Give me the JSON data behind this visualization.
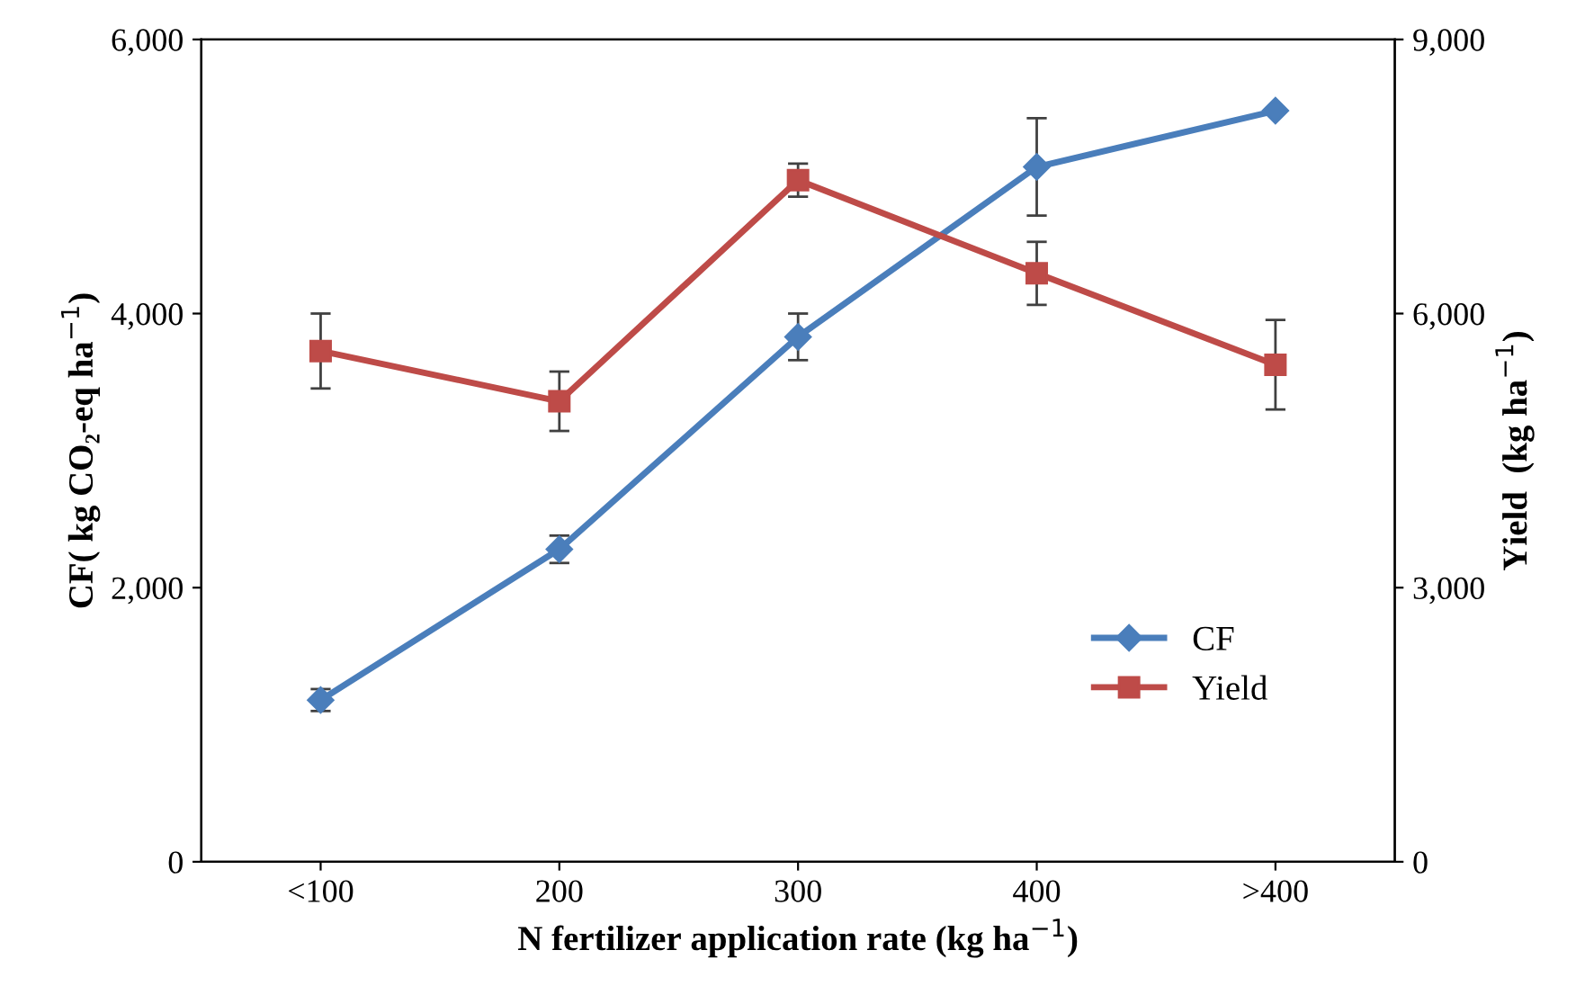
{
  "chart_data": {
    "type": "line",
    "xlabel": "N fertilizer application rate (kg ha$^{−1}$)",
    "ylabel": "CF( kg CO₂-eq ha$^{−1}$)",
    "y2label": "Yield  (kg ha$^{−1}$)",
    "categories": [
      "<100",
      "200",
      "300",
      "400",
      ">400"
    ],
    "series": [
      {
        "name": "CF",
        "color": "#4a7ebb",
        "values": [
          1180,
          2280,
          3830,
          5070,
          5480
        ],
        "errors": [
          80,
          100,
          170,
          355,
          null
        ],
        "marker": "diamond"
      },
      {
        "name": "Yield",
        "color": "#be4b48",
        "values": [
          5590,
          5040,
          7460,
          6440,
          5440
        ],
        "errors": [
          410,
          325,
          180,
          345,
          490
        ],
        "marker": "square",
        "axis": "y2"
      }
    ],
    "ylim": [
      0,
      6000
    ],
    "yticks": [
      {
        "value": 0,
        "label": "0"
      },
      {
        "value": 2000,
        "label": "2,000"
      },
      {
        "value": 4000,
        "label": "4,000"
      },
      {
        "value": 6000,
        "label": "6,000"
      }
    ],
    "y2lim": [
      0,
      9000
    ],
    "y2ticks": [
      {
        "value": 0,
        "label": "0"
      },
      {
        "value": 3000,
        "label": "3,000"
      },
      {
        "value": 6000,
        "label": "6,000"
      },
      {
        "value": 9000,
        "label": "9,000"
      }
    ],
    "legend": "bottom right",
    "grid": false,
    "line_style": "solid"
  }
}
